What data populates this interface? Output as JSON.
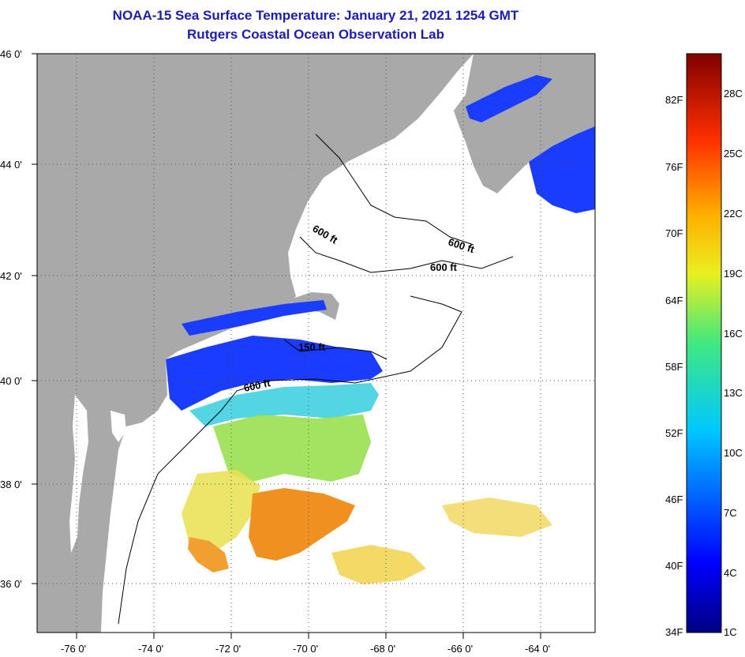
{
  "title": {
    "line1": "NOAA-15 Sea Surface Temperature:  January 21, 2021 1254 GMT",
    "line2": "Rutgers Coastal Ocean Observation Lab"
  },
  "lat_labels": [
    "46 0'",
    "44 0'",
    "42 0'",
    "40 0'",
    "38 0'",
    "36 0'"
  ],
  "lon_labels": [
    "-76 0'",
    "-74 0'",
    "-72 0'",
    "-70 0'",
    "-68 0'",
    "-66 0'",
    "-64 0'"
  ],
  "contours": [
    {
      "label": "600 ft"
    },
    {
      "label": "600 ft"
    },
    {
      "label": "600 ft"
    },
    {
      "label": "150 ft"
    },
    {
      "label": "600 ft"
    }
  ],
  "colorbar": {
    "fahrenheit": [
      "82F",
      "76F",
      "70F",
      "64F",
      "58F",
      "52F",
      "46F",
      "40F",
      "34F"
    ],
    "celsius": [
      "28C",
      "25C",
      "22C",
      "19C",
      "16C",
      "13C",
      "10C",
      "7C",
      "4C",
      "1C"
    ]
  },
  "colors": {
    "land": "#a9a9a9",
    "water": "#ffffff",
    "title": "#1c1cb0",
    "grid": "#555555"
  },
  "icons": {
    "map": "sst-map"
  }
}
